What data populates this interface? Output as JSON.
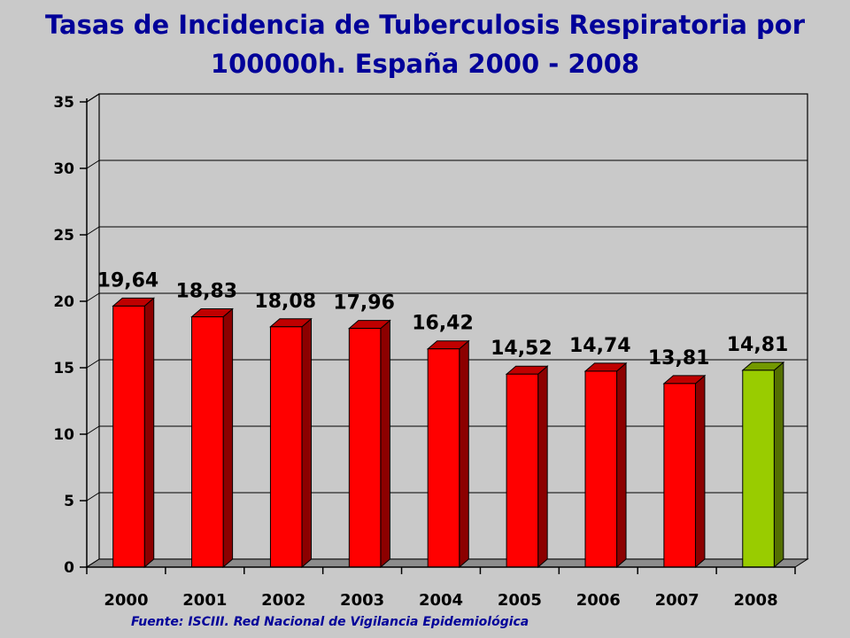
{
  "chart_data": {
    "type": "bar",
    "title_line1": "Tasas de Incidencia de Tuberculosis Respiratoria por",
    "title_line2": "100000h. España 2000 - 2008",
    "categories": [
      "2000",
      "2001",
      "2002",
      "2003",
      "2004",
      "2005",
      "2006",
      "2007",
      "2008"
    ],
    "values": [
      19.64,
      18.83,
      18.08,
      17.96,
      16.42,
      14.52,
      14.74,
      13.81,
      14.81
    ],
    "data_labels": [
      "19,64",
      "18,83",
      "18,08",
      "17,96",
      "16,42",
      "14,52",
      "14,74",
      "13,81",
      "14,81"
    ],
    "yticks": [
      "0",
      "5",
      "10",
      "15",
      "20",
      "25",
      "30",
      "35"
    ],
    "ylim": [
      0,
      35
    ],
    "grid": true,
    "colors": {
      "bar": "#ff0000",
      "bar_highlight": "#99cc00",
      "title": "#000099",
      "background": "#c9c9c9"
    },
    "highlight_index": 8
  },
  "source": "Fuente: ISCIII. Red Nacional de Vigilancia Epidemiológica"
}
